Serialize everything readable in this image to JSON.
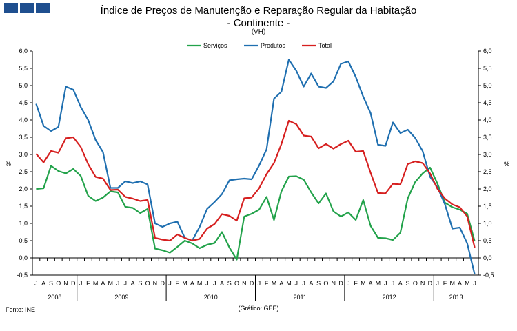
{
  "header": {
    "title": "Índice de Preços de Manutenção e Reparação Regular da Habitação",
    "subtitle": "- Continente -",
    "unit_note": "(VH)"
  },
  "footer": {
    "source": "Fonte: INE",
    "credit": "(Gráfico: GEE)"
  },
  "chart_data": {
    "type": "line",
    "title": "Índice de Preços de Manutenção e Reparação Regular da Habitação",
    "subtitle": "- Continente -",
    "ylabel": "%",
    "ylabel_right": "%",
    "ylim": [
      -0.5,
      6.0
    ],
    "yticks": [
      "-0,5",
      "0,0",
      "0,5",
      "1,0",
      "1,5",
      "2,0",
      "2,5",
      "3,0",
      "3,5",
      "4,0",
      "4,5",
      "5,0",
      "5,5",
      "6,0"
    ],
    "grid": false,
    "legend_position": "top",
    "month_labels": [
      "J",
      "A",
      "S",
      "O",
      "N",
      "D",
      "J",
      "F",
      "M",
      "A",
      "M",
      "J",
      "J",
      "A",
      "S",
      "O",
      "N",
      "D",
      "J",
      "F",
      "M",
      "A",
      "M",
      "J",
      "J",
      "A",
      "S",
      "O",
      "N",
      "D",
      "J",
      "F",
      "M",
      "A",
      "M",
      "J",
      "J",
      "A",
      "S",
      "O",
      "N",
      "D",
      "J",
      "F",
      "M",
      "A",
      "M",
      "J",
      "J",
      "A",
      "S",
      "O",
      "N",
      "D",
      "J",
      "F",
      "M",
      "A",
      "M",
      "J"
    ],
    "years": [
      {
        "label": "2008",
        "months": 6
      },
      {
        "label": "2009",
        "months": 12
      },
      {
        "label": "2010",
        "months": 12
      },
      {
        "label": "2011",
        "months": 12
      },
      {
        "label": "2012",
        "months": 12
      },
      {
        "label": "2013",
        "months": 6
      }
    ],
    "series": [
      {
        "name": "Serviços",
        "color": "#22a24a",
        "values": [
          2.0,
          2.02,
          2.67,
          2.52,
          2.45,
          2.58,
          2.38,
          1.8,
          1.65,
          1.75,
          1.93,
          1.9,
          1.48,
          1.45,
          1.3,
          1.42,
          0.27,
          0.22,
          0.15,
          0.32,
          0.5,
          0.42,
          0.28,
          0.38,
          0.43,
          0.75,
          0.3,
          -0.05,
          1.2,
          1.28,
          1.4,
          1.77,
          1.1,
          1.93,
          2.36,
          2.37,
          2.27,
          1.9,
          1.58,
          1.87,
          1.35,
          1.2,
          1.32,
          1.1,
          1.68,
          0.93,
          0.58,
          0.57,
          0.52,
          0.73,
          1.73,
          2.2,
          2.45,
          2.62,
          2.15,
          1.6,
          1.47,
          1.4,
          1.28,
          0.48
        ]
      },
      {
        "name": "Produtos",
        "color": "#1f6fb0",
        "values": [
          4.47,
          3.83,
          3.68,
          3.8,
          4.97,
          4.88,
          4.38,
          4.0,
          3.42,
          3.07,
          2.03,
          2.03,
          2.22,
          2.17,
          2.22,
          2.13,
          1.0,
          0.9,
          1.0,
          1.05,
          0.58,
          0.5,
          0.9,
          1.42,
          1.62,
          1.85,
          2.25,
          2.28,
          2.3,
          2.28,
          2.68,
          3.15,
          4.62,
          4.82,
          5.75,
          5.43,
          4.97,
          5.35,
          4.97,
          4.93,
          5.12,
          5.63,
          5.7,
          5.25,
          4.68,
          4.2,
          3.28,
          3.25,
          3.93,
          3.62,
          3.72,
          3.48,
          3.1,
          2.35,
          2.05,
          1.55,
          0.85,
          0.88,
          0.42,
          -0.48
        ]
      },
      {
        "name": "Total",
        "color": "#d61f1f",
        "values": [
          3.02,
          2.77,
          3.1,
          3.05,
          3.47,
          3.5,
          3.22,
          2.72,
          2.35,
          2.3,
          1.97,
          1.98,
          1.77,
          1.72,
          1.65,
          1.68,
          0.58,
          0.53,
          0.5,
          0.68,
          0.58,
          0.5,
          0.55,
          0.85,
          0.98,
          1.27,
          1.22,
          1.08,
          1.73,
          1.75,
          2.02,
          2.43,
          2.75,
          3.3,
          3.98,
          3.88,
          3.55,
          3.52,
          3.18,
          3.3,
          3.17,
          3.3,
          3.4,
          3.08,
          3.1,
          2.47,
          1.88,
          1.87,
          2.15,
          2.13,
          2.72,
          2.8,
          2.75,
          2.45,
          2.0,
          1.72,
          1.55,
          1.47,
          1.2,
          0.3
        ]
      }
    ]
  }
}
